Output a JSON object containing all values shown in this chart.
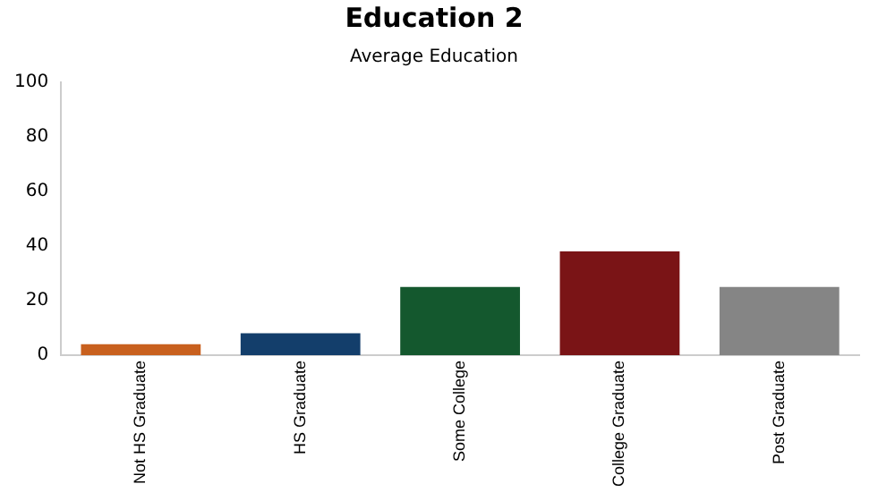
{
  "chart_data": {
    "type": "bar",
    "title": "Education 2",
    "subtitle": "Average Education",
    "categories": [
      "Not HS Graduate",
      "HS Graduate",
      "Some College",
      "College Graduate",
      "Post Graduate"
    ],
    "values": [
      4,
      8,
      25,
      38,
      25
    ],
    "colors": [
      "#c8601e",
      "#133e6b",
      "#14582e",
      "#7a1416",
      "#858585"
    ],
    "ylim": [
      0,
      100
    ],
    "yticks": [
      0,
      20,
      40,
      60,
      80,
      100
    ],
    "grid": false,
    "legend": false
  }
}
